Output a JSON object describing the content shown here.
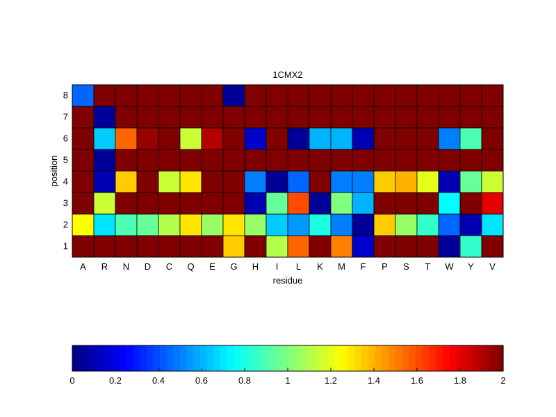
{
  "chart_data": {
    "type": "heatmap",
    "title": "1CMX2",
    "xlabel": "residue",
    "ylabel": "position",
    "x": [
      "A",
      "R",
      "N",
      "D",
      "C",
      "Q",
      "E",
      "G",
      "H",
      "I",
      "L",
      "K",
      "M",
      "F",
      "P",
      "S",
      "T",
      "W",
      "Y",
      "V"
    ],
    "y": [
      1,
      2,
      3,
      4,
      5,
      6,
      7,
      8
    ],
    "values": [
      [
        2,
        2,
        2,
        2,
        2,
        2,
        2,
        1.35,
        2,
        1.1,
        1.55,
        2,
        1.5,
        0.15,
        2,
        2,
        2,
        0.05,
        0.85,
        2
      ],
      [
        1.25,
        0.7,
        0.9,
        0.95,
        1.1,
        1.3,
        1.05,
        1.3,
        1.05,
        0.65,
        0.55,
        0.8,
        0.5,
        0.05,
        1.35,
        1.05,
        0.85,
        0.45,
        0.1,
        0.7
      ],
      [
        2,
        1.15,
        2,
        2,
        2,
        2,
        2,
        2,
        0.1,
        0.95,
        1.6,
        0.05,
        1.0,
        0.6,
        2,
        2,
        2,
        0.75,
        2,
        1.8
      ],
      [
        2,
        0.1,
        1.35,
        2,
        1.15,
        1.3,
        2,
        2,
        0.5,
        0.05,
        0.45,
        2,
        0.5,
        0.5,
        1.35,
        1.4,
        1.2,
        0.1,
        0.95,
        1.15
      ],
      [
        2,
        0.05,
        2,
        2,
        2,
        2,
        2,
        2,
        2,
        2,
        2,
        2,
        2,
        2,
        2,
        2,
        2,
        2,
        2,
        2
      ],
      [
        2,
        0.65,
        1.55,
        1.95,
        2,
        1.15,
        1.9,
        2,
        0.15,
        2,
        0.05,
        0.6,
        0.6,
        0.1,
        2,
        2,
        2,
        0.5,
        0.9,
        2
      ],
      [
        2,
        0.05,
        2,
        2,
        2,
        2,
        2,
        2,
        2,
        2,
        2,
        2,
        2,
        2,
        2,
        2,
        2,
        2,
        2,
        2
      ],
      [
        0.45,
        2,
        2,
        2,
        2,
        2,
        2,
        0.05,
        2,
        2,
        2,
        2,
        2,
        2,
        2,
        2,
        2,
        2,
        2,
        2
      ]
    ],
    "colorbar": {
      "min": 0,
      "max": 2,
      "ticks": [
        "0",
        "0.2",
        "0.4",
        "0.6",
        "0.8",
        "1",
        "1.2",
        "1.4",
        "1.6",
        "1.8",
        "2"
      ]
    },
    "colormap": "jet"
  }
}
